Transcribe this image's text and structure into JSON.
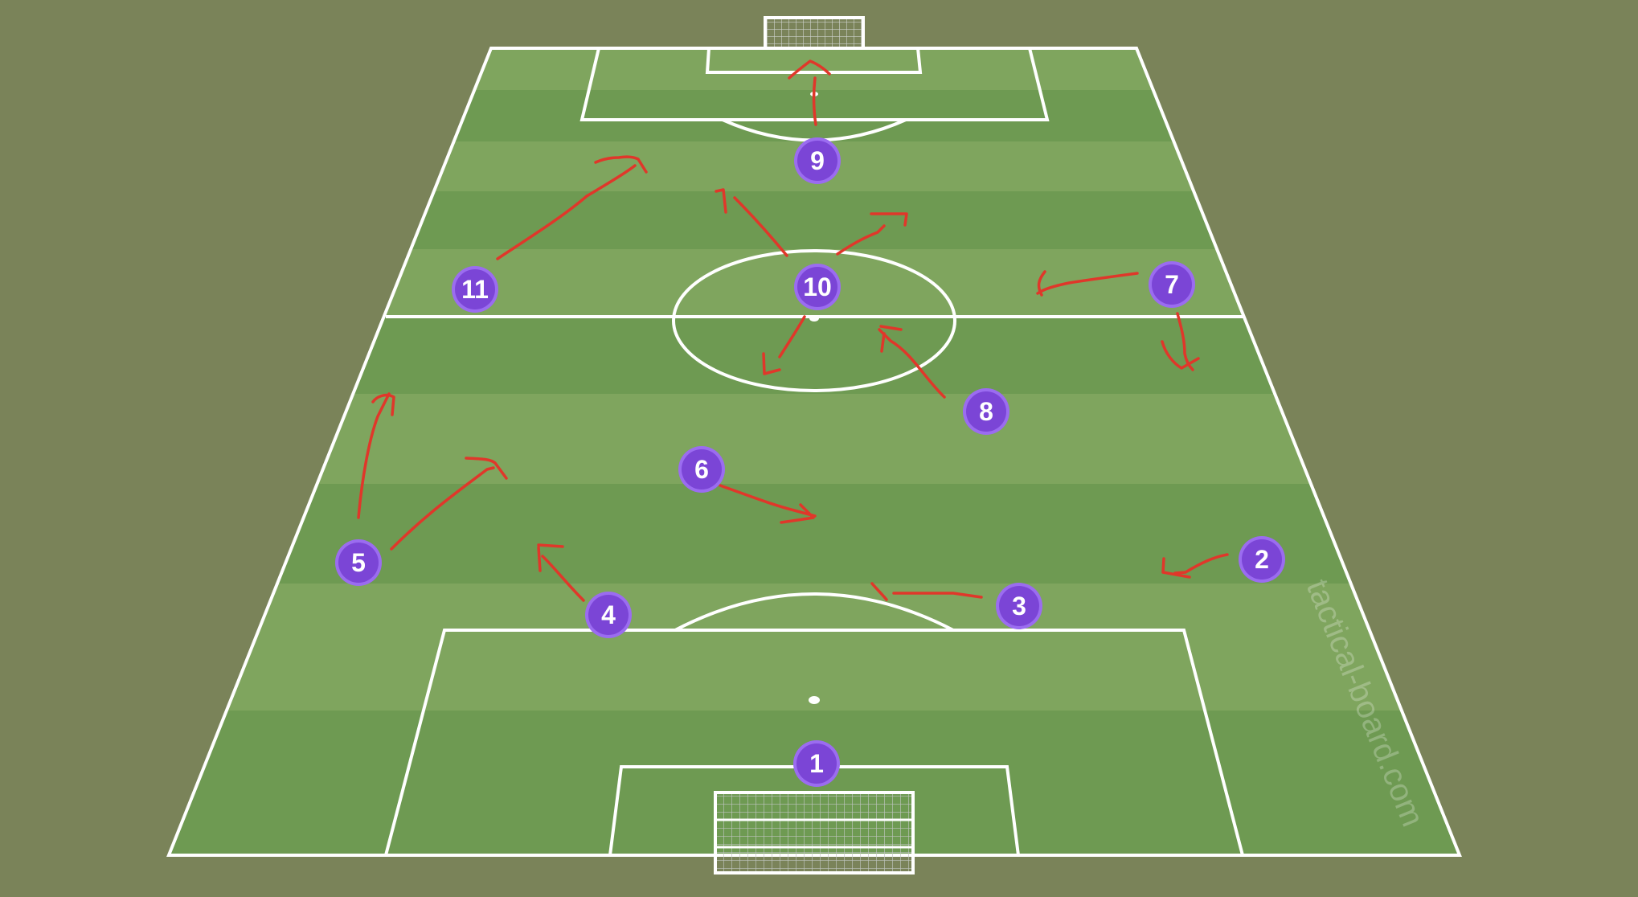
{
  "colors": {
    "background": "#7a8359",
    "pitch_dark": "#6e9a52",
    "pitch_light": "#7fa55e",
    "lines": "#ffffff",
    "player": "#7b45d6",
    "player_ring": "#9b6cf0",
    "run_arrows": "#e0372a"
  },
  "watermark": "tactical-board.com",
  "players": [
    {
      "number": "1",
      "role": "goalkeeper"
    },
    {
      "number": "2"
    },
    {
      "number": "3"
    },
    {
      "number": "4"
    },
    {
      "number": "5"
    },
    {
      "number": "6"
    },
    {
      "number": "7"
    },
    {
      "number": "8"
    },
    {
      "number": "9"
    },
    {
      "number": "10"
    },
    {
      "number": "11"
    }
  ]
}
